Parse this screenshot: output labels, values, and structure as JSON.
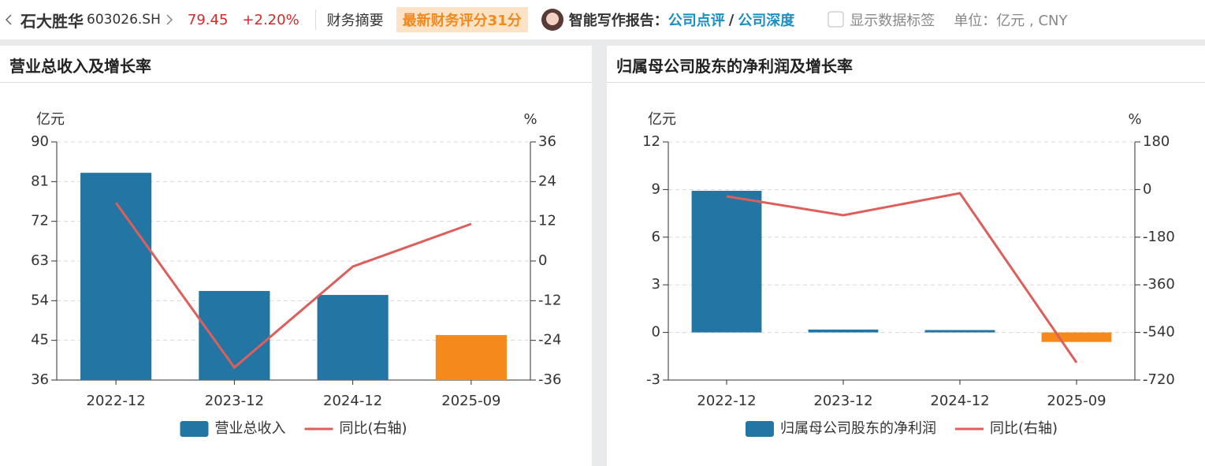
{
  "header": {
    "name": "石大胜华",
    "code": "603026.SH",
    "price": "79.45",
    "change": "+2.20%",
    "summary": "财务摘要",
    "score": "最新财务评分31分",
    "report_label": "智能写作报告：",
    "report_link1": "公司点评",
    "report_sep": "/",
    "report_link2": "公司深度",
    "show_labels": "显示数据标签",
    "unit": "单位：亿元 , CNY"
  },
  "chart_data": [
    {
      "type": "bar",
      "title": "营业总收入及增长率",
      "y_unit": "亿元",
      "y2_unit": "%",
      "categories": [
        "2022-12",
        "2023-12",
        "2024-12",
        "2025-09"
      ],
      "series": [
        {
          "name": "营业总收入",
          "type": "bar",
          "color": "#2376a4",
          "colors": [
            "#2376a4",
            "#2376a4",
            "#2376a4",
            "#f5891c"
          ],
          "values": [
            83.0,
            56.2,
            55.3,
            46.2
          ]
        },
        {
          "name": "同比(右轴)",
          "type": "line",
          "axis": "y2",
          "color": "#dd5f5c",
          "values": [
            17.6,
            -32.2,
            -1.7,
            11.2
          ]
        }
      ],
      "ylim": [
        36,
        90
      ],
      "yticks": [
        36,
        45,
        54,
        63,
        72,
        81,
        90
      ],
      "y2lim": [
        -36,
        36
      ],
      "y2ticks": [
        -36,
        -24,
        -12,
        0,
        12,
        24,
        36
      ],
      "grid": true
    },
    {
      "type": "bar",
      "title": "归属母公司股东的净利润及增长率",
      "y_unit": "亿元",
      "y2_unit": "%",
      "categories": [
        "2022-12",
        "2023-12",
        "2024-12",
        "2025-09"
      ],
      "series": [
        {
          "name": "归属母公司股东的净利润",
          "type": "bar",
          "color": "#2376a4",
          "colors": [
            "#2376a4",
            "#2376a4",
            "#2376a4",
            "#f5891c"
          ],
          "values": [
            8.92,
            0.18,
            0.15,
            -0.6
          ]
        },
        {
          "name": "同比(右轴)",
          "type": "line",
          "axis": "y2",
          "color": "#dd5f5c",
          "values": [
            -25.6,
            -97,
            -13.7,
            -654
          ]
        }
      ],
      "ylim": [
        -3,
        12
      ],
      "yticks": [
        -3,
        0,
        3,
        6,
        9,
        12
      ],
      "y2lim": [
        -720,
        180
      ],
      "y2ticks": [
        -720,
        -540,
        -360,
        -180,
        0,
        180
      ],
      "grid": true
    }
  ]
}
